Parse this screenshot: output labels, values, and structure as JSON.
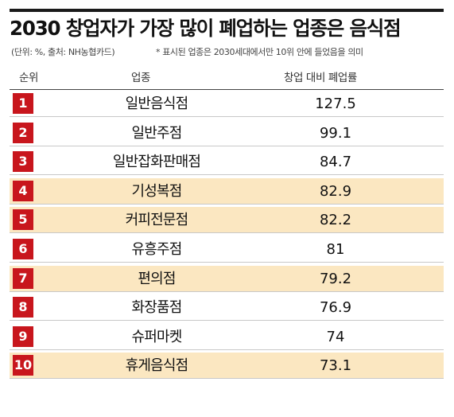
{
  "chart_data": {
    "type": "table",
    "title": "2030 창업자가 가장 많이 폐업하는 업종은 음식점",
    "unit_note": "(단위: %, 출처: NH농협카드)",
    "note": "* 표시된 업종은 2030세대에서만 10위 안에 들었음을 의미",
    "columns": [
      "순위",
      "업종",
      "창업 대비 폐업률"
    ],
    "highlight_color": "#fbe7c1",
    "rank_badge_color": "#c8161d",
    "rows": [
      {
        "rank": "1",
        "name": "일반음식점",
        "value": "127.5",
        "highlighted": false
      },
      {
        "rank": "2",
        "name": "일반주점",
        "value": "99.1",
        "highlighted": false
      },
      {
        "rank": "3",
        "name": "일반잡화판매점",
        "value": "84.7",
        "highlighted": false
      },
      {
        "rank": "4",
        "name": "기성복점",
        "value": "82.9",
        "highlighted": true
      },
      {
        "rank": "5",
        "name": "커피전문점",
        "value": "82.2",
        "highlighted": true
      },
      {
        "rank": "6",
        "name": "유흥주점",
        "value": "81",
        "highlighted": false
      },
      {
        "rank": "7",
        "name": "편의점",
        "value": "79.2",
        "highlighted": true
      },
      {
        "rank": "8",
        "name": "화장품점",
        "value": "76.9",
        "highlighted": false
      },
      {
        "rank": "9",
        "name": "슈퍼마켓",
        "value": "74",
        "highlighted": false
      },
      {
        "rank": "10",
        "name": "휴게음식점",
        "value": "73.1",
        "highlighted": true
      }
    ]
  }
}
